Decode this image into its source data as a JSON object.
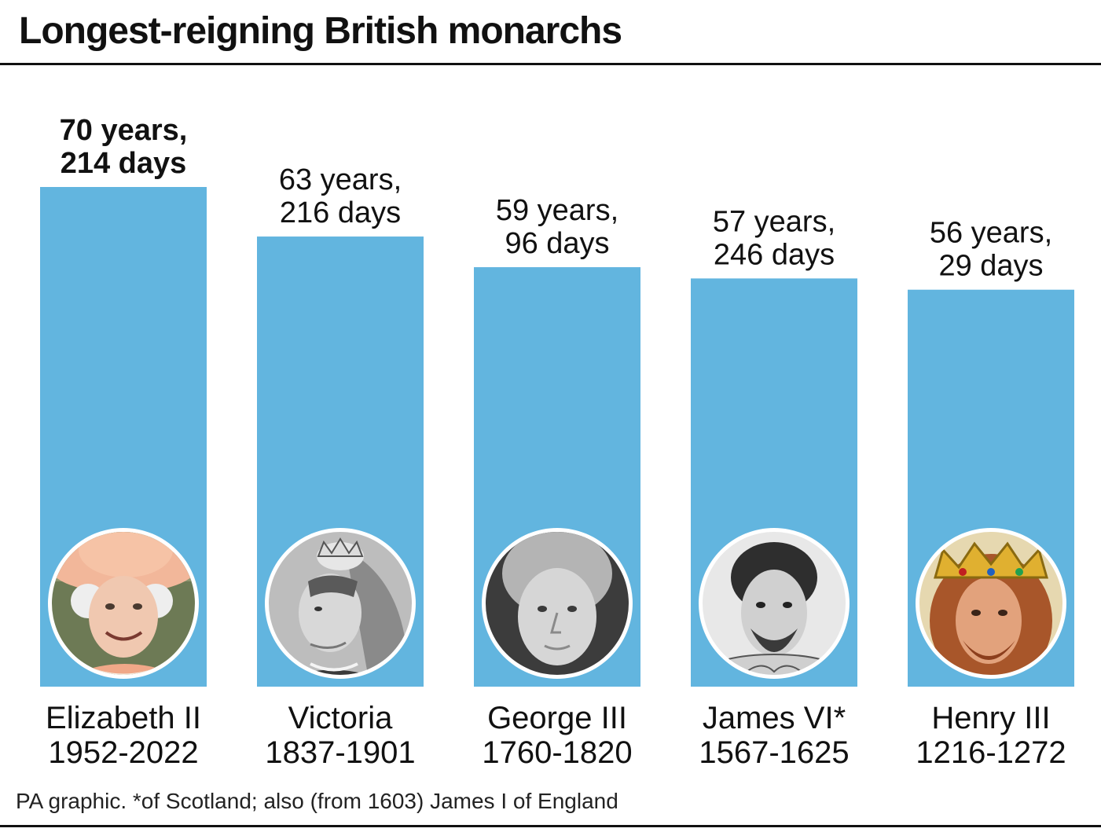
{
  "chart_data": {
    "type": "bar",
    "title": "Longest-reigning British monarchs",
    "categories": [
      "Elizabeth II",
      "Victoria",
      "George III",
      "James VI*",
      "Henry III"
    ],
    "reign_periods": [
      "1952-2022",
      "1837-1901",
      "1760-1820",
      "1567-1625",
      "1216-1272"
    ],
    "value_labels": [
      [
        "70 years,",
        "214 days"
      ],
      [
        "63 years,",
        "216 days"
      ],
      [
        "59 years,",
        "96 days"
      ],
      [
        "57 years,",
        "246 days"
      ],
      [
        "56 years,",
        "29 days"
      ]
    ],
    "values": [
      70.59,
      63.59,
      59.26,
      57.67,
      56.08
    ],
    "portraits": [
      "elizabeth-ii-portrait",
      "victoria-portrait",
      "george-iii-portrait",
      "james-vi-portrait",
      "henry-iii-portrait"
    ],
    "ylim": [
      0,
      70.59
    ],
    "grid": false,
    "bar_color": "#62b5df",
    "highlight_index": 0
  },
  "footnote": "PA graphic. *of Scotland; also (from 1603) James I of England"
}
